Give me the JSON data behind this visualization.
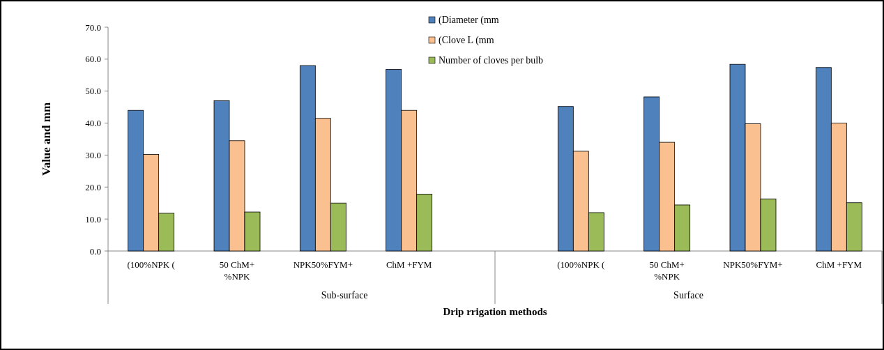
{
  "chart_data": {
    "type": "bar",
    "ylabel": "Value and mm",
    "xlabel": "Drip rrigation methods",
    "categories": [
      "(100%NPK (",
      "50 ChM+\n%NPK",
      "NPK50%FYM+",
      "ChM +FYM",
      null,
      "(100%NPK (",
      "50 ChM+\n%NPK",
      "NPK50%FYM+",
      "ChM +FYM"
    ],
    "series": [
      {
        "name": "(Diameter (mm",
        "color": "#4f81bd",
        "values": [
          44.0,
          47.0,
          58.0,
          56.8,
          null,
          45.2,
          48.2,
          58.4,
          57.4
        ]
      },
      {
        "name": "(Clove L (mm",
        "color": "#fac090",
        "values": [
          30.2,
          34.5,
          41.5,
          44.0,
          null,
          31.2,
          34.0,
          39.8,
          40.0
        ]
      },
      {
        "name": "Number of cloves per bulb",
        "color": "#9bbb59",
        "values": [
          11.8,
          12.2,
          15.0,
          17.8,
          null,
          12.0,
          14.4,
          16.3,
          15.1
        ]
      }
    ],
    "annotations": [
      "Sub-surface",
      "Surface"
    ],
    "ylim": [
      0,
      70
    ],
    "yticks": [
      {
        "value": 0,
        "label": "0.0"
      },
      {
        "value": 10,
        "label": "10.0"
      },
      {
        "value": 20,
        "label": "20.0"
      },
      {
        "value": 30,
        "label": "30.0"
      },
      {
        "value": 40,
        "label": "40.0"
      },
      {
        "value": 50,
        "label": "50.0"
      },
      {
        "value": 60,
        "label": "60.0"
      },
      {
        "value": 70,
        "label": "70.0"
      }
    ],
    "legend": "top"
  }
}
